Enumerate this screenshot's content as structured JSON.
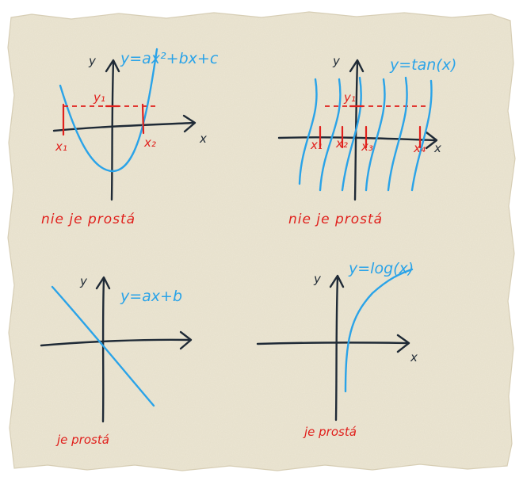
{
  "panels": {
    "quadratic": {
      "axis_x": "x",
      "axis_y": "y",
      "equation": "y=ax²+bx+c",
      "y_mark": "y₁",
      "x_marks": [
        "x₁",
        "x₂"
      ],
      "verdict": "nie je prostá"
    },
    "tangent": {
      "axis_x": "x",
      "axis_y": "y",
      "equation": "y=tan(x)",
      "y_mark": "y₁",
      "x_marks": [
        "x₁",
        "x₂",
        "x₃",
        "x₄"
      ],
      "verdict": "nie je prostá"
    },
    "linear": {
      "axis_y": "y",
      "equation": "y=ax+b",
      "verdict": "je prostá"
    },
    "logarithm": {
      "axis_x": "x",
      "axis_y": "y",
      "equation": "y=log(x)",
      "verdict": "je prostá"
    }
  },
  "colors": {
    "paper": "#ece6d3",
    "curve": "#2aa3e8",
    "axis": "#1f2a36",
    "annotation": "#e0201c"
  }
}
